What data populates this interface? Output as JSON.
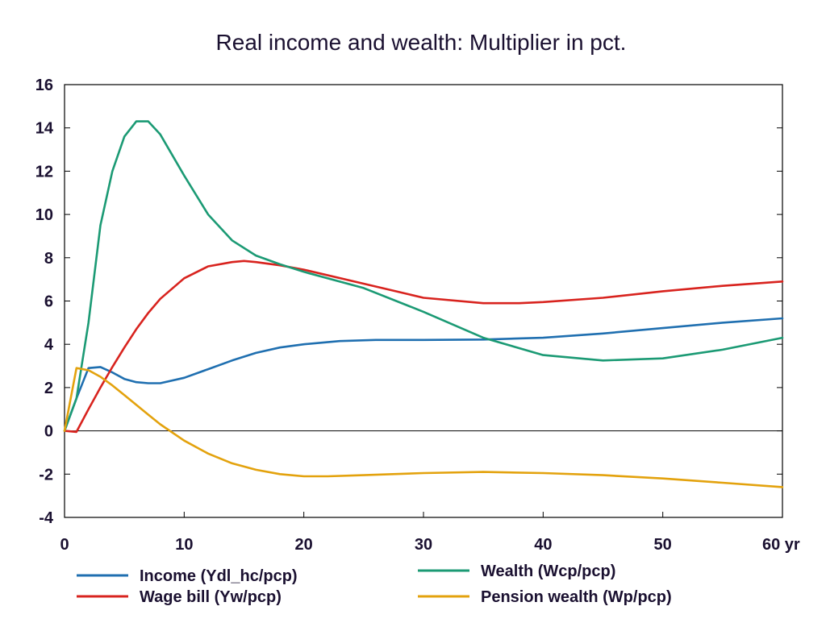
{
  "chart_data": {
    "type": "line",
    "title": "Real income and wealth: Multiplier in pct.",
    "xlabel": "",
    "ylabel": "",
    "x_unit_label": "yr",
    "xlim": [
      0,
      60
    ],
    "ylim": [
      -4,
      16
    ],
    "x_ticks": [
      0,
      10,
      20,
      30,
      40,
      50,
      60
    ],
    "y_ticks": [
      -4,
      -2,
      0,
      2,
      4,
      6,
      8,
      10,
      12,
      14,
      16
    ],
    "x_tick_labels": [
      "0",
      "10",
      "20",
      "30",
      "40",
      "50",
      "60 yr"
    ],
    "y_tick_labels": [
      "-4",
      "-2",
      "0",
      "2",
      "4",
      "6",
      "8",
      "10",
      "12",
      "14",
      "16"
    ],
    "grid": false,
    "zero_line": true,
    "legend_position": "bottom",
    "series": [
      {
        "name": "Income (Ydl_hc/pcp)",
        "color": "#1f6fb0",
        "x": [
          0,
          1,
          2,
          3,
          4,
          5,
          6,
          7,
          8,
          10,
          12,
          14,
          16,
          18,
          20,
          23,
          26,
          30,
          35,
          40,
          45,
          50,
          55,
          60
        ],
        "y": [
          0,
          1.5,
          2.9,
          2.95,
          2.7,
          2.4,
          2.25,
          2.2,
          2.2,
          2.45,
          2.85,
          3.25,
          3.6,
          3.85,
          4.0,
          4.15,
          4.2,
          4.2,
          4.22,
          4.3,
          4.5,
          4.75,
          5.0,
          5.2
        ]
      },
      {
        "name": "Wage bill (Yw/pcp)",
        "color": "#d8231e",
        "x": [
          0,
          1,
          2,
          3,
          4,
          5,
          6,
          7,
          8,
          10,
          12,
          14,
          15,
          16,
          18,
          20,
          25,
          30,
          35,
          38,
          40,
          45,
          50,
          55,
          60
        ],
        "y": [
          0,
          -0.05,
          1.0,
          2.0,
          2.95,
          3.85,
          4.7,
          5.45,
          6.1,
          7.05,
          7.6,
          7.8,
          7.85,
          7.8,
          7.65,
          7.45,
          6.8,
          6.15,
          5.9,
          5.9,
          5.95,
          6.15,
          6.45,
          6.7,
          6.9
        ]
      },
      {
        "name": "Wealth (Wcp/pcp)",
        "color": "#1b9a74",
        "x": [
          0,
          1,
          2,
          3,
          4,
          5,
          6,
          7,
          8,
          10,
          12,
          14,
          16,
          18,
          20,
          25,
          30,
          35,
          40,
          45,
          50,
          55,
          60
        ],
        "y": [
          0,
          1.5,
          5.0,
          9.5,
          12.0,
          13.6,
          14.3,
          14.3,
          13.7,
          11.8,
          10.0,
          8.8,
          8.1,
          7.7,
          7.35,
          6.6,
          5.5,
          4.3,
          3.5,
          3.25,
          3.35,
          3.75,
          4.3
        ]
      },
      {
        "name": "Pension wealth (Wp/pcp)",
        "color": "#e3a20d",
        "x": [
          0,
          1,
          2,
          3,
          4,
          5,
          6,
          7,
          8,
          10,
          12,
          14,
          16,
          18,
          20,
          22,
          25,
          30,
          35,
          40,
          45,
          50,
          55,
          60
        ],
        "y": [
          0,
          2.9,
          2.8,
          2.5,
          2.1,
          1.65,
          1.2,
          0.75,
          0.3,
          -0.45,
          -1.05,
          -1.5,
          -1.8,
          -2.0,
          -2.1,
          -2.1,
          -2.05,
          -1.95,
          -1.9,
          -1.95,
          -2.05,
          -2.2,
          -2.4,
          -2.6
        ]
      }
    ]
  }
}
